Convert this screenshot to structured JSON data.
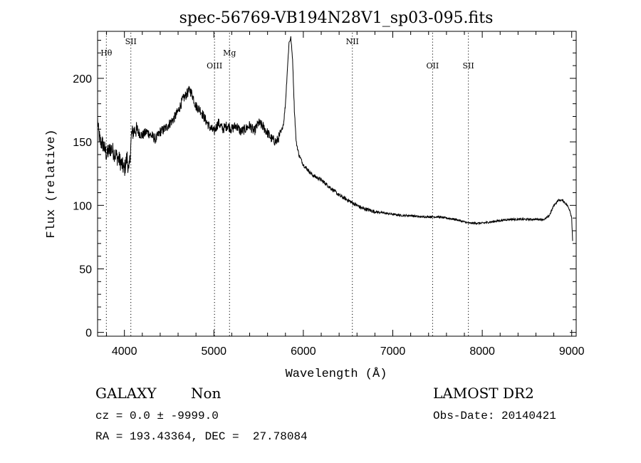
{
  "chart_data": {
    "type": "line",
    "title": "spec-56769-VB194N28V1_sp03-095.fits",
    "xlabel": "Wavelength (Å)",
    "ylabel": "Flux (relative)",
    "xlim": [
      3700,
      9050
    ],
    "ylim": [
      -3,
      237
    ],
    "xticks": [
      4000,
      5000,
      6000,
      7000,
      8000,
      9000
    ],
    "yticks": [
      0,
      50,
      100,
      150,
      200
    ],
    "xtick_labels": [
      "4000",
      "5000",
      "6000",
      "7000",
      "8000",
      "9000"
    ],
    "ytick_labels": [
      "0",
      "50",
      "100",
      "150",
      "200"
    ],
    "grid": false,
    "legend": "none",
    "line_color": "#000000",
    "lines": [
      {
        "label": "Hθ",
        "x": 3798,
        "row": 0
      },
      {
        "label": "SII",
        "x": 4072,
        "row": -1
      },
      {
        "label": "OIII",
        "x": 5007,
        "row": 1
      },
      {
        "label": "Mg",
        "x": 5175,
        "row": 0
      },
      {
        "label": "NII",
        "x": 6548,
        "row": -1
      },
      {
        "label": "OII",
        "x": 7445,
        "row": 1
      },
      {
        "label": "SII",
        "x": 7845,
        "row": 1
      }
    ],
    "series": [
      {
        "x": [
          3700,
          3710,
          3730,
          3760,
          3800,
          3850,
          3900,
          3950,
          4000,
          4030,
          4050,
          4080,
          4120,
          4150,
          4200,
          4250,
          4300,
          4350,
          4400,
          4450,
          4500,
          4550,
          4600,
          4650,
          4700,
          4730,
          4760,
          4800,
          4850,
          4900,
          4950,
          5000,
          5050,
          5100,
          5150,
          5200,
          5250,
          5300,
          5350,
          5400,
          5450,
          5500,
          5550,
          5600,
          5650,
          5700,
          5750,
          5780,
          5800,
          5820,
          5840,
          5860,
          5880,
          5900,
          5920,
          5950,
          6000,
          6050,
          6100,
          6150,
          6200,
          6250,
          6300,
          6350,
          6400,
          6450,
          6500,
          6550,
          6600,
          6650,
          6700,
          6800,
          6900,
          7000,
          7100,
          7200,
          7300,
          7400,
          7500,
          7600,
          7700,
          7800,
          7850,
          7900,
          8000,
          8100,
          8200,
          8300,
          8400,
          8500,
          8600,
          8700,
          8750,
          8800,
          8850,
          8900,
          8950,
          8980,
          9000,
          9010
        ],
        "y": [
          168,
          158,
          150,
          148,
          140,
          145,
          140,
          135,
          128,
          138,
          125,
          156,
          160,
          158,
          155,
          158,
          155,
          152,
          158,
          160,
          164,
          168,
          174,
          183,
          188,
          191,
          187,
          178,
          175,
          168,
          162,
          158,
          165,
          160,
          163,
          160,
          163,
          158,
          160,
          163,
          158,
          165,
          162,
          157,
          152,
          150,
          157,
          165,
          180,
          205,
          228,
          232,
          215,
          175,
          150,
          140,
          132,
          128,
          124,
          122,
          120,
          117,
          114,
          111,
          108,
          106,
          104,
          102,
          100,
          98,
          97,
          95,
          94,
          93,
          92,
          92,
          91,
          91,
          91,
          90,
          89,
          87,
          86,
          86,
          86,
          87,
          88,
          89,
          89,
          89,
          89,
          89,
          92,
          100,
          104,
          104,
          100,
          96,
          90,
          72
        ]
      }
    ]
  },
  "info": {
    "object_class": "GALAXY",
    "object_subclass": "Non",
    "survey": "LAMOST DR2",
    "redshift_text": "cz = 0.0 ± -9999.0",
    "obs_date_text": "Obs-Date: 20140421",
    "coords_text": "RA = 193.43364, DEC =  27.78084"
  }
}
